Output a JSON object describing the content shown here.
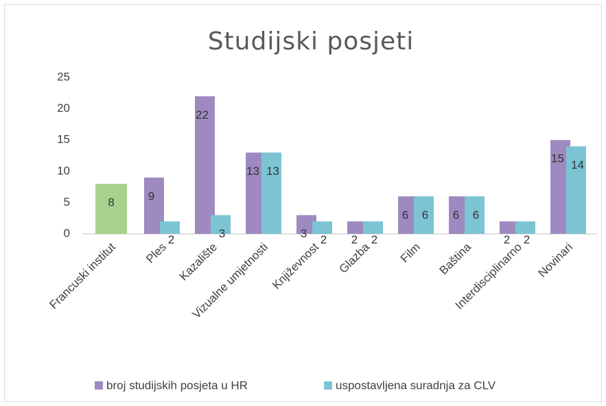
{
  "chart_data": {
    "type": "bar",
    "title": "Studijski posjeti",
    "categories": [
      "Francuski institut",
      "Ples",
      "Kazalište",
      "Vizualne umjetnosti",
      "Književnost",
      "Glazba",
      "Film",
      "Baština",
      "Interdisciplinarno",
      "Novinari"
    ],
    "series": [
      {
        "name": "broj studijskih posjeta u HR",
        "color": "#9e8ac0",
        "point_colors": {
          "0": "#a9d18e"
        },
        "values": [
          8,
          9,
          22,
          13,
          3,
          2,
          6,
          6,
          2,
          15
        ]
      },
      {
        "name": "uspostavljena suradnja za CLV",
        "color": "#7cc4d4",
        "values": [
          null,
          2,
          3,
          13,
          2,
          2,
          6,
          6,
          2,
          14
        ]
      }
    ],
    "ylim": [
      0,
      25
    ],
    "yticks": [
      0,
      5,
      10,
      15,
      20,
      25
    ],
    "grid": false,
    "legend": "bottom"
  }
}
